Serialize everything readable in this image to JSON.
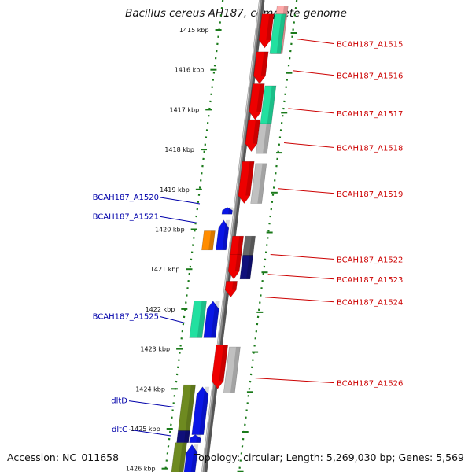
{
  "title": "Bacillus cereus AH187, complete genome",
  "footer": {
    "accession": "Accession: NC_011658",
    "summary": "Topology: circular; Length: 5,269,030 bp; Genes: 5,569"
  },
  "colors": {
    "forward_label": "#cc0000",
    "reverse_label": "#0000aa",
    "red": "#ee0000",
    "blue": "#0a16e6",
    "green": "#22e0a0",
    "grey": "#c0c0c0",
    "darkgrey": "#666666",
    "navy": "#10107a",
    "orange": "#ff8c00",
    "olive": "#6e8a20",
    "backbone": "#8a8a8a",
    "tick_green": "#1a7a1a"
  },
  "ticks": [
    {
      "label": "1415 kbp",
      "kbp": 1415
    },
    {
      "label": "1416 kbp",
      "kbp": 1416
    },
    {
      "label": "1417 kbp",
      "kbp": 1417
    },
    {
      "label": "1418 kbp",
      "kbp": 1418
    },
    {
      "label": "1419 kbp",
      "kbp": 1419
    },
    {
      "label": "1420 kbp",
      "kbp": 1420
    },
    {
      "label": "1421 kbp",
      "kbp": 1421
    },
    {
      "label": "1422 kbp",
      "kbp": 1422
    },
    {
      "label": "1423 kbp",
      "kbp": 1423
    },
    {
      "label": "1424 kbp",
      "kbp": 1424
    },
    {
      "label": "1425 kbp",
      "kbp": 1425
    },
    {
      "label": "1426 kbp",
      "kbp": 1426
    }
  ],
  "forward_labels": [
    {
      "name": "BCAH187_A1515",
      "kbp": 1415.23
    },
    {
      "name": "BCAH187_A1516",
      "kbp": 1416.02
    },
    {
      "name": "BCAH187_A1517",
      "kbp": 1416.97
    },
    {
      "name": "BCAH187_A1518",
      "kbp": 1417.83
    },
    {
      "name": "BCAH187_A1519",
      "kbp": 1418.98
    },
    {
      "name": "BCAH187_A1522",
      "kbp": 1420.63
    },
    {
      "name": "BCAH187_A1523",
      "kbp": 1421.13
    },
    {
      "name": "BCAH187_A1524",
      "kbp": 1421.7
    },
    {
      "name": "BCAH187_A1526",
      "kbp": 1423.73
    }
  ],
  "reverse_labels": [
    {
      "name": "BCAH187_A1520",
      "kbp": 1419.3
    },
    {
      "name": "BCAH187_A1521",
      "kbp": 1419.78
    },
    {
      "name": "BCAH187_A1525",
      "kbp": 1422.29
    },
    {
      "name": "dltD",
      "kbp": 1424.4
    },
    {
      "name": "dltC",
      "kbp": 1425.12
    }
  ]
}
